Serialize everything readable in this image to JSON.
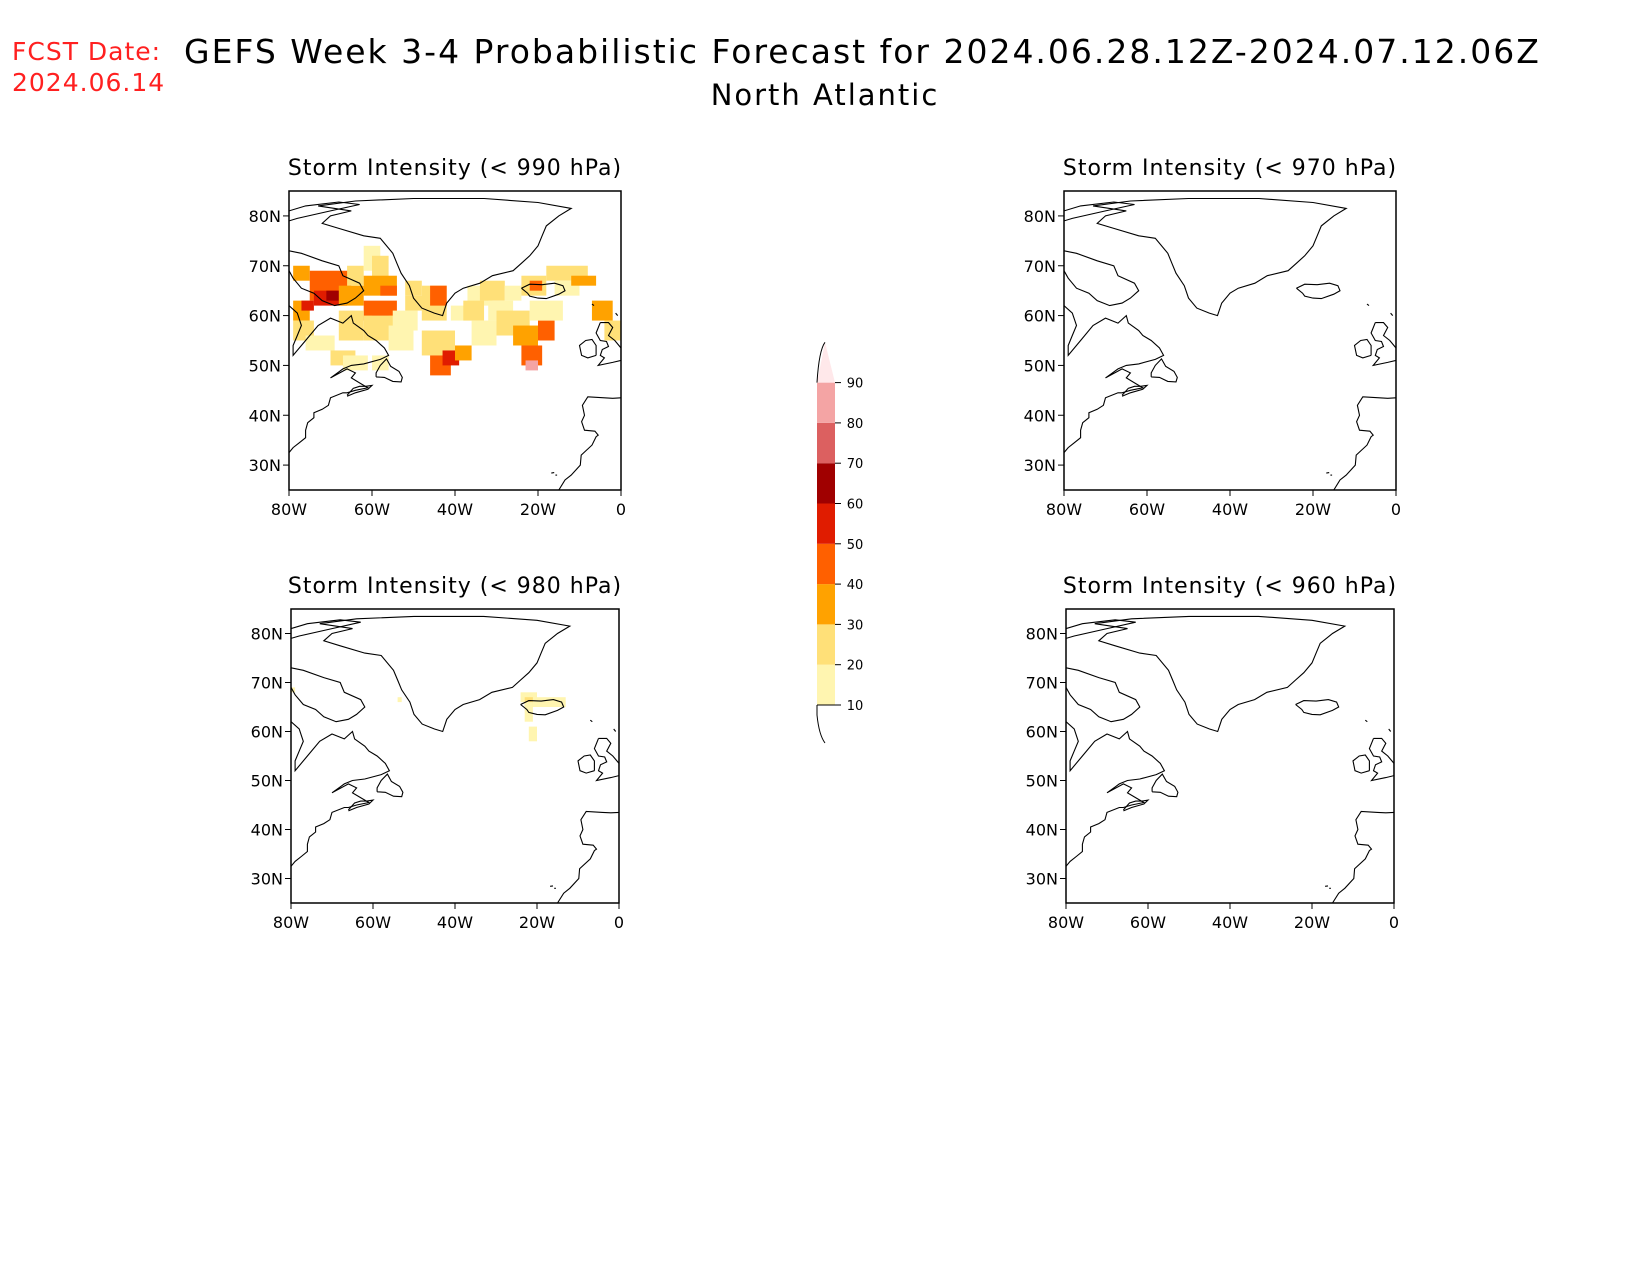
{
  "header": {
    "fcst_label": "FCST Date:",
    "fcst_date": "2024.06.14",
    "title": "GEFS Week 3-4 Probabilistic Forecast for 2024.06.28.12Z-2024.07.12.06Z",
    "subtitle": "North Atlantic"
  },
  "colors": {
    "coast": "#000000",
    "frame": "#000000",
    "text_alert": "#ff2020"
  },
  "chart_data": {
    "type": "heatmap",
    "domain": {
      "lon": [
        -80,
        0
      ],
      "lat": [
        25,
        85
      ]
    },
    "x_ticks": [
      "80W",
      "60W",
      "40W",
      "20W",
      "0"
    ],
    "y_ticks": [
      "30N",
      "40N",
      "50N",
      "60N",
      "70N",
      "80N"
    ],
    "colorbar": {
      "levels": [
        10,
        20,
        30,
        40,
        50,
        60,
        70,
        80,
        90
      ],
      "colors": [
        "#fff5b0",
        "#ffe078",
        "#ffa200",
        "#ff6000",
        "#e01c00",
        "#a00000",
        "#dc6060",
        "#f4a4a4",
        "#ffe8ea"
      ]
    },
    "panels": [
      {
        "title": "Storm Intensity (< 990 hPa)",
        "cells": [
          {
            "lon": -79,
            "lat": 67,
            "w": 4,
            "h": 3,
            "p": 30
          },
          {
            "lon": -79,
            "lat": 59,
            "w": 4,
            "h": 4,
            "p": 30
          },
          {
            "lon": -79,
            "lat": 55,
            "w": 5,
            "h": 4,
            "p": 20
          },
          {
            "lon": -75,
            "lat": 63,
            "w": 10,
            "h": 6,
            "p": 40
          },
          {
            "lon": -74,
            "lat": 62,
            "w": 8,
            "h": 3,
            "p": 50
          },
          {
            "lon": -71,
            "lat": 63,
            "w": 5,
            "h": 2,
            "p": 60
          },
          {
            "lon": -77,
            "lat": 61,
            "w": 3,
            "h": 2,
            "p": 50
          },
          {
            "lon": -68,
            "lat": 62,
            "w": 6,
            "h": 4,
            "p": 30
          },
          {
            "lon": -66,
            "lat": 66,
            "w": 4,
            "h": 4,
            "p": 20
          },
          {
            "lon": -62,
            "lat": 69,
            "w": 4,
            "h": 5,
            "p": 10
          },
          {
            "lon": -60,
            "lat": 67,
            "w": 4,
            "h": 5,
            "p": 20
          },
          {
            "lon": -62,
            "lat": 64,
            "w": 8,
            "h": 4,
            "p": 30
          },
          {
            "lon": -58,
            "lat": 64,
            "w": 4,
            "h": 2,
            "p": 40
          },
          {
            "lon": -62,
            "lat": 59,
            "w": 8,
            "h": 4,
            "p": 40
          },
          {
            "lon": -60,
            "lat": 57,
            "w": 4,
            "h": 3,
            "p": 50
          },
          {
            "lon": -62,
            "lat": 55,
            "w": 8,
            "h": 5,
            "p": 20
          },
          {
            "lon": -68,
            "lat": 55,
            "w": 6,
            "h": 6,
            "p": 20
          },
          {
            "lon": -76,
            "lat": 53,
            "w": 7,
            "h": 3,
            "p": 10
          },
          {
            "lon": -70,
            "lat": 50,
            "w": 6,
            "h": 3,
            "p": 20
          },
          {
            "lon": -67,
            "lat": 49,
            "w": 6,
            "h": 3,
            "p": 10
          },
          {
            "lon": -60,
            "lat": 49,
            "w": 4,
            "h": 3,
            "p": 10
          },
          {
            "lon": -56,
            "lat": 53,
            "w": 6,
            "h": 5,
            "p": 10
          },
          {
            "lon": -55,
            "lat": 57,
            "w": 6,
            "h": 4,
            "p": 10
          },
          {
            "lon": -52,
            "lat": 61,
            "w": 6,
            "h": 3,
            "p": 20
          },
          {
            "lon": -52,
            "lat": 64,
            "w": 4,
            "h": 3,
            "p": 20
          },
          {
            "lon": -48,
            "lat": 59,
            "w": 6,
            "h": 7,
            "p": 20
          },
          {
            "lon": -46,
            "lat": 62,
            "w": 4,
            "h": 4,
            "p": 40
          },
          {
            "lon": -48,
            "lat": 52,
            "w": 8,
            "h": 5,
            "p": 20
          },
          {
            "lon": -46,
            "lat": 48,
            "w": 5,
            "h": 4,
            "p": 40
          },
          {
            "lon": -43,
            "lat": 50,
            "w": 4,
            "h": 3,
            "p": 50
          },
          {
            "lon": -40,
            "lat": 51,
            "w": 4,
            "h": 3,
            "p": 30
          },
          {
            "lon": -41,
            "lat": 59,
            "w": 6,
            "h": 3,
            "p": 10
          },
          {
            "lon": -37,
            "lat": 62,
            "w": 6,
            "h": 4,
            "p": 10
          },
          {
            "lon": -38,
            "lat": 59,
            "w": 5,
            "h": 4,
            "p": 20
          },
          {
            "lon": -34,
            "lat": 63,
            "w": 6,
            "h": 4,
            "p": 20
          },
          {
            "lon": -36,
            "lat": 54,
            "w": 6,
            "h": 5,
            "p": 10
          },
          {
            "lon": -32,
            "lat": 59,
            "w": 6,
            "h": 4,
            "p": 10
          },
          {
            "lon": -28,
            "lat": 63,
            "w": 4,
            "h": 3,
            "p": 10
          },
          {
            "lon": -30,
            "lat": 56,
            "w": 8,
            "h": 5,
            "p": 20
          },
          {
            "lon": -26,
            "lat": 54,
            "w": 6,
            "h": 4,
            "p": 30
          },
          {
            "lon": -24,
            "lat": 50,
            "w": 5,
            "h": 4,
            "p": 40
          },
          {
            "lon": -23,
            "lat": 49,
            "w": 3,
            "h": 2,
            "p": 80
          },
          {
            "lon": -20,
            "lat": 55,
            "w": 4,
            "h": 4,
            "p": 40
          },
          {
            "lon": -22,
            "lat": 59,
            "w": 8,
            "h": 4,
            "p": 10
          },
          {
            "lon": -24,
            "lat": 64,
            "w": 6,
            "h": 4,
            "p": 20
          },
          {
            "lon": -22,
            "lat": 65,
            "w": 3,
            "h": 2,
            "p": 40
          },
          {
            "lon": -18,
            "lat": 67,
            "w": 10,
            "h": 3,
            "p": 20
          },
          {
            "lon": -16,
            "lat": 64,
            "w": 6,
            "h": 3,
            "p": 10
          },
          {
            "lon": -12,
            "lat": 66,
            "w": 6,
            "h": 2,
            "p": 30
          },
          {
            "lon": -7,
            "lat": 59,
            "w": 5,
            "h": 4,
            "p": 30
          },
          {
            "lon": -4,
            "lat": 55,
            "w": 4,
            "h": 4,
            "p": 20
          }
        ]
      },
      {
        "title": "Storm Intensity (< 970 hPa)",
        "cells": []
      },
      {
        "title": "Storm Intensity (< 980 hPa)",
        "cells": [
          {
            "lon": -80,
            "lat": 68,
            "w": 1,
            "h": 1,
            "p": 10
          },
          {
            "lon": -54,
            "lat": 66,
            "w": 1,
            "h": 1,
            "p": 10
          },
          {
            "lon": -24,
            "lat": 66,
            "w": 4,
            "h": 2,
            "p": 10
          },
          {
            "lon": -21,
            "lat": 65,
            "w": 8,
            "h": 2,
            "p": 10
          },
          {
            "lon": -23,
            "lat": 65,
            "w": 2,
            "h": 2,
            "p": 20
          },
          {
            "lon": -23,
            "lat": 62,
            "w": 2,
            "h": 4,
            "p": 10
          },
          {
            "lon": -22,
            "lat": 58,
            "w": 2,
            "h": 3,
            "p": 10
          }
        ]
      },
      {
        "title": "Storm Intensity (< 960 hPa)",
        "cells": []
      }
    ]
  }
}
